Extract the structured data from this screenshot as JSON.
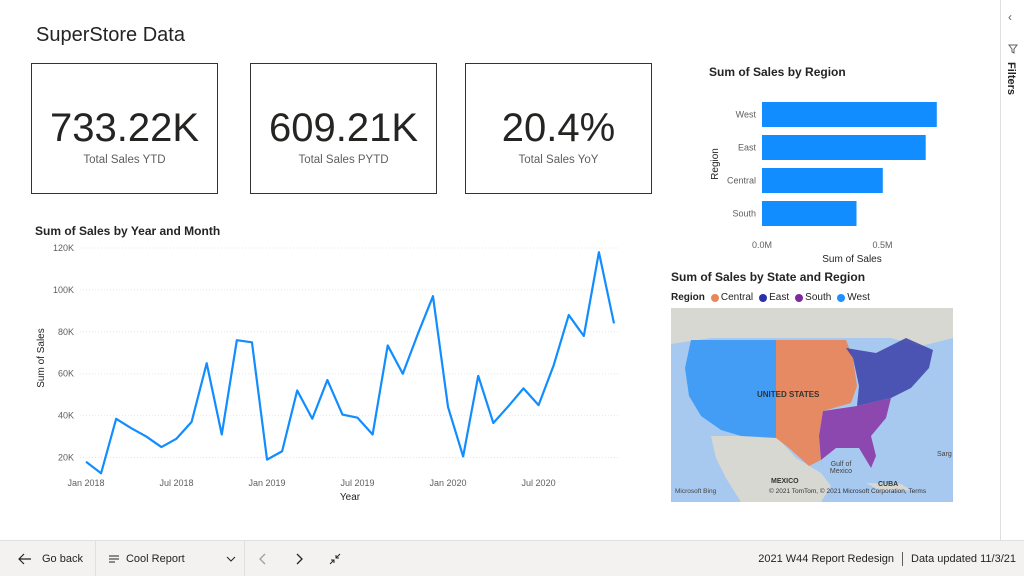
{
  "report": {
    "title": "SuperStore Data"
  },
  "cards": [
    {
      "value": "733.22K",
      "label": "Total Sales YTD"
    },
    {
      "value": "609.21K",
      "label": "Total Sales PYTD"
    },
    {
      "value": "20.4%",
      "label": "Total Sales YoY"
    }
  ],
  "colors": {
    "bar": "#118DFF",
    "line": "#118DFF",
    "central": "#E8875A",
    "east": "#2A31A8",
    "south": "#7E2A9C",
    "west": "#1E90FF"
  },
  "line_chart": {
    "title": "Sum of Sales by Year and Month"
  },
  "bar_chart": {
    "title": "Sum of Sales by Region"
  },
  "map_chart": {
    "title": "Sum of Sales by State and Region",
    "legend_title": "Region",
    "legend": [
      "Central",
      "East",
      "South",
      "West"
    ],
    "labels": {
      "country": "UNITED STATES",
      "gulf": "Gulf of Mexico",
      "mexico": "MEXICO",
      "cuba": "CUBA",
      "sarg": "Sarg"
    },
    "logo": "Microsoft Bing",
    "copyright": "© 2021 TomTom, © 2021 Microsoft Corporation, Terms"
  },
  "chart_data": [
    {
      "type": "line",
      "title": "Sum of Sales by Year and Month",
      "xlabel": "Year",
      "ylabel": "Sum of Sales",
      "x_tick_labels": [
        "Jan 2018",
        "Jul 2018",
        "Jan 2019",
        "Jul 2019",
        "Jan 2020",
        "Jul 2020"
      ],
      "y_tick_labels": [
        "20K",
        "40K",
        "60K",
        "80K",
        "100K",
        "120K"
      ],
      "ylim": [
        15000,
        120000
      ],
      "grid": true,
      "x": [
        "2018-01",
        "2018-02",
        "2018-03",
        "2018-04",
        "2018-05",
        "2018-06",
        "2018-07",
        "2018-08",
        "2018-09",
        "2018-10",
        "2018-11",
        "2018-12",
        "2019-01",
        "2019-02",
        "2019-03",
        "2019-04",
        "2019-05",
        "2019-06",
        "2019-07",
        "2019-08",
        "2019-09",
        "2019-10",
        "2019-11",
        "2019-12",
        "2020-01",
        "2020-02",
        "2020-03",
        "2020-04",
        "2020-05",
        "2020-06",
        "2020-07",
        "2020-08",
        "2020-09",
        "2020-10",
        "2020-11",
        "2020-12"
      ],
      "series": [
        {
          "values": [
            18000,
            12500,
            38500,
            34000,
            30000,
            25000,
            29000,
            37000,
            65000,
            31000,
            76000,
            75000,
            19000,
            23000,
            52000,
            38500,
            57000,
            40500,
            39000,
            31000,
            73500,
            60000,
            79000,
            97000,
            44000,
            20500,
            59000,
            36500,
            44500,
            53000,
            45000,
            64000,
            88000,
            78000,
            118000,
            84000
          ]
        }
      ]
    },
    {
      "type": "bar",
      "orientation": "horizontal",
      "title": "Sum of Sales by Region",
      "xlabel": "Sum of Sales",
      "ylabel": "Region",
      "categories": [
        "West",
        "East",
        "Central",
        "South"
      ],
      "values": [
        725000,
        679000,
        501000,
        392000
      ],
      "x_tick_labels": [
        "0.0M",
        "0.5M"
      ],
      "xlim": [
        0,
        730000
      ]
    }
  ],
  "filters": {
    "label": "Filters"
  },
  "bottom": {
    "go_back": "Go back",
    "page_name": "Cool Report",
    "report_name": "2021 W44 Report Redesign",
    "data_updated": "Data updated 11/3/21"
  }
}
